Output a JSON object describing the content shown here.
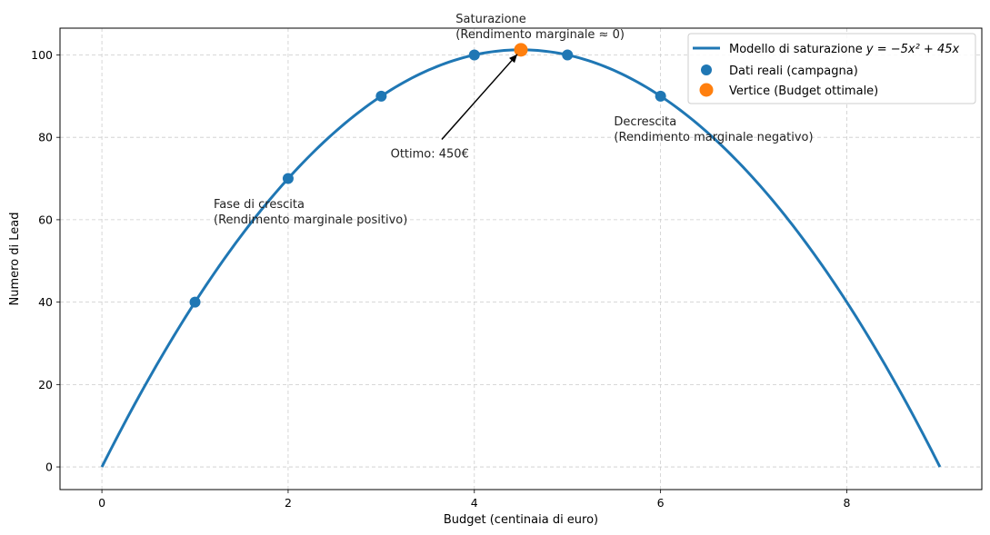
{
  "chart_data": {
    "type": "line",
    "title": "",
    "xlabel": "Budget (centinaia di euro)",
    "ylabel": "Numero di Lead",
    "xlim": [
      -0.45,
      9.45
    ],
    "ylim": [
      -5.5,
      106.5
    ],
    "xticks": [
      0,
      2,
      4,
      6,
      8
    ],
    "yticks": [
      0,
      20,
      40,
      60,
      80,
      100
    ],
    "grid": true,
    "legend_position": "top-right",
    "series": [
      {
        "name": "Modello di saturazione",
        "kind": "curve",
        "formula": "y = −5x² + 45x",
        "coefficients": {
          "a": -5,
          "b": 45,
          "c": 0
        },
        "x_range": [
          0,
          9
        ],
        "color": "#1f77b4"
      },
      {
        "name": "Dati reali (campagna)",
        "kind": "scatter",
        "x": [
          1,
          2,
          3,
          4,
          5,
          6
        ],
        "y": [
          40,
          70,
          90,
          100,
          100,
          90
        ],
        "color": "#1f77b4"
      },
      {
        "name": "Vertice (Budget ottimale)",
        "kind": "scatter",
        "x": [
          4.5
        ],
        "y": [
          101.25
        ],
        "color": "#ff7f0e"
      }
    ],
    "annotations": [
      {
        "id": "saturazione",
        "lines": [
          "Saturazione",
          "(Rendimento marginale ≈ 0)"
        ],
        "x": 3.8,
        "y": 105
      },
      {
        "id": "ottimo",
        "lines": [
          "Ottimo: 450€"
        ],
        "x": 3.1,
        "y": 76,
        "arrow_to": [
          4.5,
          101.25
        ]
      },
      {
        "id": "crescita",
        "lines": [
          "Fase di crescita",
          "(Rendimento marginale positivo)"
        ],
        "x": 1.2,
        "y": 60
      },
      {
        "id": "decrescita",
        "lines": [
          "Decrescita",
          "(Rendimento marginale negativo)"
        ],
        "x": 5.5,
        "y": 80
      }
    ]
  }
}
